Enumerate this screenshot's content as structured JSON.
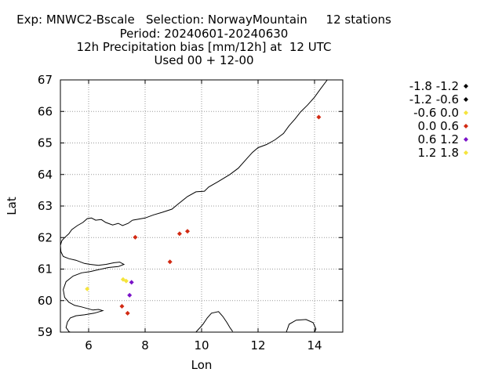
{
  "header": {
    "line1": "Exp: MNWC2-Bscale   Selection: NorwayMountain     12 stations",
    "line2": "Period: 20240601-20240630",
    "line3": "12h Precipitation bias [mm/12h] at  12 UTC",
    "line4": "Used 00 + 12-00"
  },
  "chart_data": {
    "type": "scatter",
    "xlabel": "Lon",
    "ylabel": "Lat",
    "xlim": [
      5,
      15
    ],
    "ylim": [
      59,
      67
    ],
    "xticks": [
      6,
      8,
      10,
      12,
      14
    ],
    "yticks": [
      59,
      60,
      61,
      62,
      63,
      64,
      65,
      66,
      67
    ],
    "grid": true,
    "legend_position": "right",
    "legend": [
      {
        "label": "-1.8 -1.2",
        "color": "#000000"
      },
      {
        "label": "-1.2 -0.6",
        "color": "#000000"
      },
      {
        "label": "-0.6 0.0",
        "color": "#f5e43c"
      },
      {
        "label": "0.0 0.6",
        "color": "#d22a13"
      },
      {
        "label": "0.6 1.2",
        "color": "#7a12c8"
      },
      {
        "label": "1.2 1.8",
        "color": "#f5e43c"
      }
    ],
    "points": [
      {
        "lon": 14.15,
        "lat": 65.82,
        "bin": 3
      },
      {
        "lon": 7.65,
        "lat": 62.01,
        "bin": 3
      },
      {
        "lon": 9.22,
        "lat": 62.12,
        "bin": 3
      },
      {
        "lon": 9.5,
        "lat": 62.2,
        "bin": 3
      },
      {
        "lon": 8.88,
        "lat": 61.23,
        "bin": 3
      },
      {
        "lon": 7.22,
        "lat": 60.67,
        "bin": 2
      },
      {
        "lon": 7.33,
        "lat": 60.62,
        "bin": 2
      },
      {
        "lon": 5.95,
        "lat": 60.37,
        "bin": 2
      },
      {
        "lon": 7.52,
        "lat": 60.58,
        "bin": 4
      },
      {
        "lon": 7.45,
        "lat": 60.17,
        "bin": 4
      },
      {
        "lon": 7.18,
        "lat": 59.82,
        "bin": 3
      },
      {
        "lon": 7.38,
        "lat": 59.6,
        "bin": 3
      }
    ],
    "coastlines": [
      [
        [
          7.55,
          62.55
        ],
        [
          7.75,
          62.58
        ],
        [
          8.0,
          62.62
        ],
        [
          8.3,
          62.72
        ],
        [
          8.6,
          62.8
        ],
        [
          8.95,
          62.9
        ],
        [
          9.15,
          63.05
        ],
        [
          9.5,
          63.3
        ],
        [
          9.8,
          63.45
        ],
        [
          10.1,
          63.47
        ],
        [
          10.25,
          63.6
        ],
        [
          10.6,
          63.78
        ],
        [
          11.0,
          64.0
        ],
        [
          11.3,
          64.2
        ],
        [
          11.6,
          64.5
        ],
        [
          11.8,
          64.7
        ],
        [
          12.0,
          64.85
        ],
        [
          12.3,
          64.95
        ],
        [
          12.6,
          65.1
        ],
        [
          12.9,
          65.3
        ],
        [
          13.1,
          65.55
        ],
        [
          13.3,
          65.75
        ],
        [
          13.5,
          65.98
        ],
        [
          13.75,
          66.2
        ],
        [
          14.0,
          66.45
        ],
        [
          14.2,
          66.7
        ],
        [
          14.45,
          67.0
        ]
      ],
      [
        [
          7.55,
          62.55
        ],
        [
          7.4,
          62.45
        ],
        [
          7.2,
          62.38
        ],
        [
          7.05,
          62.45
        ],
        [
          6.85,
          62.4
        ],
        [
          6.6,
          62.48
        ],
        [
          6.45,
          62.57
        ],
        [
          6.25,
          62.55
        ],
        [
          6.1,
          62.62
        ],
        [
          5.95,
          62.6
        ],
        [
          5.8,
          62.48
        ],
        [
          5.6,
          62.38
        ],
        [
          5.4,
          62.25
        ],
        [
          5.3,
          62.12
        ],
        [
          5.15,
          62.0
        ],
        [
          5.05,
          61.9
        ],
        [
          5.0,
          61.75
        ],
        [
          5.02,
          61.55
        ],
        [
          5.1,
          61.4
        ],
        [
          5.3,
          61.33
        ],
        [
          5.55,
          61.28
        ],
        [
          5.85,
          61.18
        ],
        [
          6.05,
          61.15
        ],
        [
          6.35,
          61.12
        ],
        [
          6.62,
          61.15
        ],
        [
          6.9,
          61.2
        ],
        [
          7.1,
          61.22
        ],
        [
          7.25,
          61.15
        ],
        [
          7.05,
          61.08
        ],
        [
          6.7,
          61.05
        ],
        [
          6.35,
          60.98
        ],
        [
          6.05,
          60.92
        ],
        [
          5.75,
          60.88
        ],
        [
          5.45,
          60.78
        ],
        [
          5.2,
          60.6
        ],
        [
          5.1,
          60.35
        ],
        [
          5.15,
          60.1
        ],
        [
          5.3,
          59.95
        ],
        [
          5.5,
          59.85
        ],
        [
          5.75,
          59.8
        ],
        [
          5.95,
          59.75
        ],
        [
          6.15,
          59.7
        ],
        [
          6.35,
          59.72
        ],
        [
          6.5,
          59.68
        ],
        [
          6.2,
          59.6
        ],
        [
          5.85,
          59.55
        ],
        [
          5.55,
          59.52
        ],
        [
          5.35,
          59.45
        ],
        [
          5.25,
          59.32
        ],
        [
          5.2,
          59.15
        ],
        [
          5.3,
          59.02
        ],
        [
          5.4,
          58.98
        ]
      ],
      [
        [
          9.8,
          59.0
        ],
        [
          9.9,
          59.1
        ],
        [
          10.05,
          59.25
        ],
        [
          10.2,
          59.45
        ],
        [
          10.35,
          59.6
        ],
        [
          10.6,
          59.65
        ],
        [
          10.75,
          59.5
        ],
        [
          10.9,
          59.3
        ],
        [
          11.0,
          59.15
        ],
        [
          11.1,
          59.02
        ]
      ],
      [
        [
          13.0,
          59.0
        ],
        [
          13.1,
          59.25
        ],
        [
          13.35,
          59.38
        ],
        [
          13.7,
          59.4
        ],
        [
          13.95,
          59.3
        ],
        [
          14.05,
          59.1
        ],
        [
          14.0,
          59.0
        ]
      ]
    ]
  }
}
